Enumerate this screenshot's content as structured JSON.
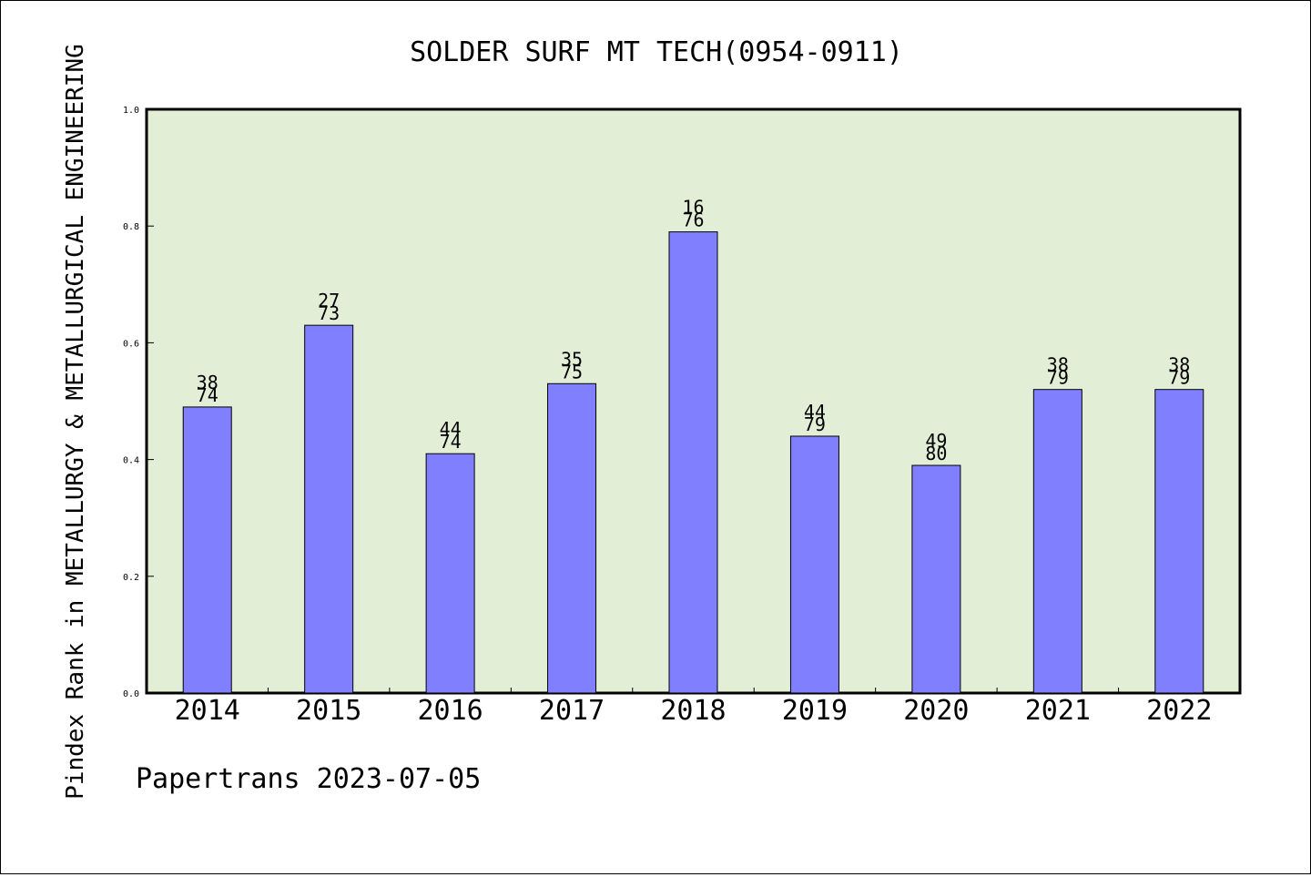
{
  "chart_data": {
    "type": "bar",
    "title": "SOLDER SURF MT TECH(0954-0911)",
    "ylabel": "Pindex Rank in METALLURGY & METALLURGICAL ENGINEERING",
    "xlabel": "",
    "categories": [
      "2014",
      "2015",
      "2016",
      "2017",
      "2018",
      "2019",
      "2020",
      "2021",
      "2022"
    ],
    "values": [
      0.49,
      0.63,
      0.41,
      0.53,
      0.79,
      0.44,
      0.39,
      0.52,
      0.52
    ],
    "bar_labels_top": [
      "38",
      "27",
      "44",
      "35",
      "16",
      "44",
      "49",
      "38",
      "38"
    ],
    "bar_labels_bottom": [
      "74",
      "73",
      "74",
      "75",
      "76",
      "79",
      "80",
      "79",
      "79"
    ],
    "ylim": [
      0,
      1.0
    ],
    "yticks": [
      "0.0",
      "0.2",
      "0.4",
      "0.6",
      "0.8",
      "1.0"
    ],
    "grid": false,
    "footer": "Papertrans 2023-07-05",
    "colors": {
      "plot_background": "#e2efd6",
      "bar_fill": "#8080ff",
      "bar_stroke": "#000000"
    }
  }
}
